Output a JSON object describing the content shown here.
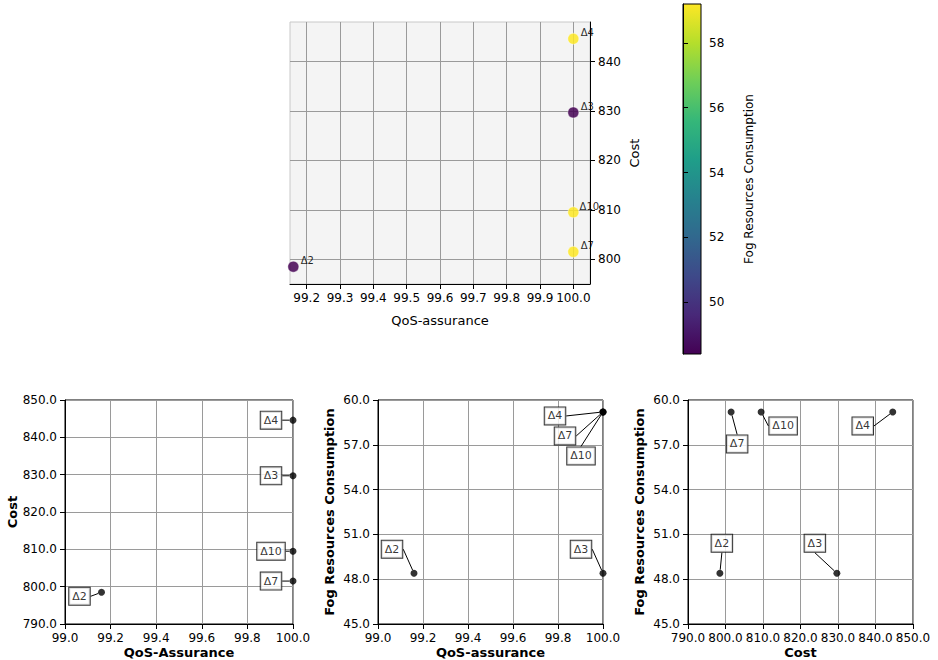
{
  "chart_data": [
    {
      "type": "scatter",
      "xlabel": "QoS-assurance",
      "ylabel": "Cost",
      "zlabel": "Fog Resources Consumption",
      "labels": [
        "Δ2",
        "Δ3",
        "Δ4",
        "Δ7",
        "Δ10"
      ],
      "x": [
        99.16,
        100.0,
        100.0,
        100.0,
        100.0
      ],
      "y": [
        798.5,
        829.7,
        844.6,
        801.5,
        809.5
      ],
      "color_values": [
        48.4,
        48.4,
        59.2,
        59.2,
        59.2
      ],
      "colorbar": {
        "range": [
          48.4,
          59.2
        ],
        "ticks": [
          50,
          52,
          54,
          56,
          58
        ]
      },
      "xlim": [
        99.15,
        100.05
      ],
      "xticks": [
        99.2,
        99.3,
        99.4,
        99.5,
        99.6,
        99.7,
        99.8,
        99.9,
        {
          "value": 100.0,
          "label": "100.0"
        }
      ],
      "ylim": [
        795,
        848
      ],
      "yticks": [
        800,
        810,
        820,
        830,
        840
      ],
      "grid": true
    },
    {
      "type": "scatter",
      "xlabel": "QoS-Assurance",
      "ylabel": "Cost",
      "labels": [
        "Δ2",
        "Δ3",
        "Δ4",
        "Δ7",
        "Δ10"
      ],
      "x": [
        99.16,
        100.0,
        100.0,
        100.0,
        100.0
      ],
      "y": [
        798.5,
        829.7,
        844.6,
        801.5,
        809.5
      ],
      "color": "#000000",
      "xlim": [
        99.0,
        100.0
      ],
      "xticks": [
        {
          "value": 99.0,
          "label": "99.0"
        },
        99.2,
        99.4,
        99.6,
        99.8,
        {
          "value": 100.0,
          "label": "100.0"
        }
      ],
      "ylim": [
        790,
        850
      ],
      "yticks": [
        {
          "value": 790,
          "label": "790.0"
        },
        {
          "value": 800,
          "label": "800.0"
        },
        {
          "value": 810,
          "label": "810.0"
        },
        {
          "value": 820,
          "label": "820.0"
        },
        {
          "value": 830,
          "label": "830.0"
        },
        {
          "value": 840,
          "label": "840.0"
        },
        {
          "value": 850,
          "label": "850.0"
        }
      ],
      "grid": true
    },
    {
      "type": "scatter",
      "xlabel": "QoS-assurance",
      "ylabel": "Fog Resources Consumption",
      "labels": [
        "Δ2",
        "Δ3",
        "Δ4",
        "Δ7",
        "Δ10"
      ],
      "x": [
        99.16,
        100.0,
        100.0,
        100.0,
        100.0
      ],
      "y": [
        48.4,
        48.4,
        59.2,
        59.2,
        59.2
      ],
      "color": "#000000",
      "xlim": [
        99.0,
        100.0
      ],
      "xticks": [
        {
          "value": 99.0,
          "label": "99.0"
        },
        99.2,
        99.4,
        99.6,
        99.8,
        {
          "value": 100.0,
          "label": "100.0"
        }
      ],
      "ylim": [
        45,
        60
      ],
      "yticks": [
        {
          "value": 45,
          "label": "45.0"
        },
        {
          "value": 48,
          "label": "48.0"
        },
        {
          "value": 51,
          "label": "51.0"
        },
        {
          "value": 54,
          "label": "54.0"
        },
        {
          "value": 57,
          "label": "57.0"
        },
        {
          "value": 60,
          "label": "60.0"
        }
      ],
      "grid": true
    },
    {
      "type": "scatter",
      "xlabel": "Cost",
      "ylabel": "Fog Resources Consumption",
      "labels": [
        "Δ2",
        "Δ3",
        "Δ4",
        "Δ7",
        "Δ10"
      ],
      "x": [
        798.5,
        829.7,
        844.6,
        801.5,
        809.5
      ],
      "y": [
        48.4,
        48.4,
        59.2,
        59.2,
        59.2
      ],
      "color": "#000000",
      "xlim": [
        790,
        850
      ],
      "xticks": [
        {
          "value": 790,
          "label": "790.0"
        },
        {
          "value": 800,
          "label": "800.0"
        },
        {
          "value": 810,
          "label": "810.0"
        },
        {
          "value": 820,
          "label": "820.0"
        },
        {
          "value": 830,
          "label": "830.0"
        },
        {
          "value": 840,
          "label": "840.0"
        },
        {
          "value": 850,
          "label": "850.0"
        }
      ],
      "ylim": [
        45,
        60
      ],
      "yticks": [
        {
          "value": 45,
          "label": "45.0"
        },
        {
          "value": 48,
          "label": "48.0"
        },
        {
          "value": 51,
          "label": "51.0"
        },
        {
          "value": 54,
          "label": "54.0"
        },
        {
          "value": 57,
          "label": "57.0"
        },
        {
          "value": 60,
          "label": "60.0"
        }
      ],
      "grid": true
    }
  ]
}
